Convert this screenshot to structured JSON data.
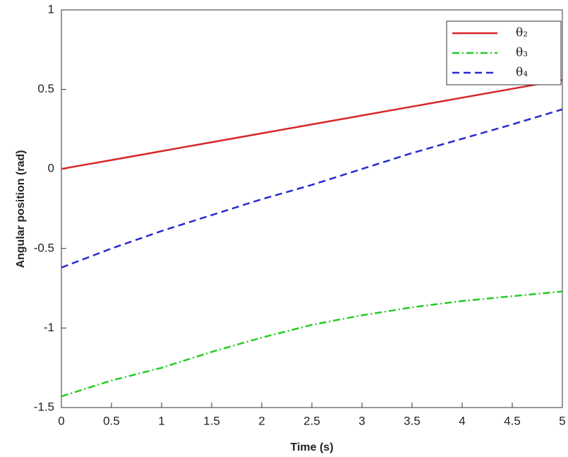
{
  "chart_data": {
    "type": "line",
    "xlabel": "Time (s)",
    "ylabel": "Angular position (rad)",
    "x": [
      0,
      0.5,
      1,
      1.5,
      2,
      2.5,
      3,
      3.5,
      4,
      4.5,
      5
    ],
    "series": [
      {
        "name": "θ₂",
        "color": "#d62728",
        "style": "solid",
        "values": [
          0,
          0.056,
          0.112,
          0.168,
          0.224,
          0.28,
          0.336,
          0.392,
          0.448,
          0.504,
          0.56
        ]
      },
      {
        "name": "θ₃",
        "color": "#22cc22",
        "style": "dashdot",
        "values": [
          -1.43,
          -1.33,
          -1.25,
          -1.15,
          -1.06,
          -0.98,
          -0.92,
          -0.87,
          -0.83,
          -0.8,
          -0.77
        ]
      },
      {
        "name": "θ₄",
        "color": "#2a2ad0",
        "style": "dashed",
        "values": [
          -0.62,
          -0.5,
          -0.39,
          -0.29,
          -0.19,
          -0.1,
          0.0,
          0.1,
          0.19,
          0.28,
          0.375
        ]
      }
    ],
    "xlim": [
      0,
      5
    ],
    "xticks": [
      0,
      0.5,
      1,
      1.5,
      2,
      2.5,
      3,
      3.5,
      4,
      4.5,
      5
    ],
    "ylim": [
      -1.5,
      1
    ],
    "yticks": [
      -1.5,
      -1,
      -0.5,
      0,
      0.5,
      1
    ],
    "grid": false,
    "legend": "upper-right"
  }
}
